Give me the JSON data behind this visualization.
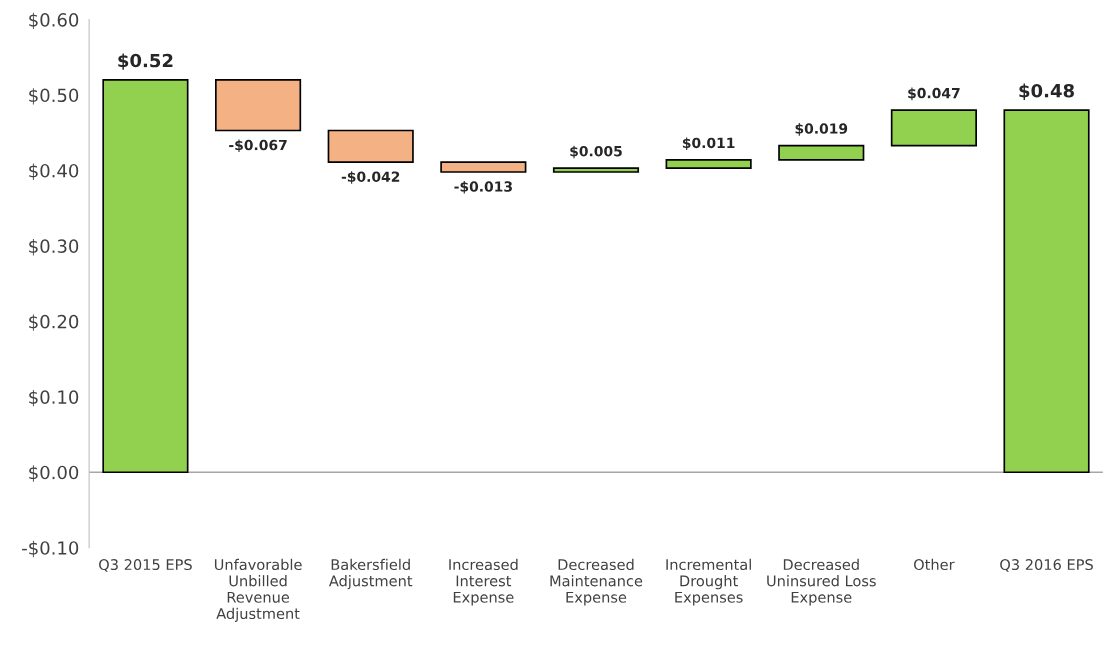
{
  "chart_data": {
    "type": "bar",
    "categories": [
      "Q3 2015 EPS",
      "Unfavorable\nUnbilled\nRevenue\nAdjustment",
      "Bakersfield\nAdjustment",
      "Increased\nInterest\nExpense",
      "Decreased\nMaintenance\nExpense",
      "Incremental\nDrought\nExpenses",
      "Decreased\nUninsured Loss\nExpense",
      "Other",
      "Q3 2016 EPS"
    ],
    "values": [
      0.52,
      -0.067,
      -0.042,
      -0.013,
      0.005,
      0.011,
      0.019,
      0.047,
      0.48
    ],
    "base": [
      0,
      0.52,
      0.453,
      0.411,
      0.398,
      0.403,
      0.414,
      0.433,
      0
    ],
    "colors": [
      "#92d050",
      "#f4b183",
      "#f4b183",
      "#f4b183",
      "#92d050",
      "#92d050",
      "#92d050",
      "#92d050",
      "#92d050"
    ],
    "value_labels": [
      "$0.52",
      "-$0.067",
      "-$0.042",
      "-$0.013",
      "$0.005",
      "$0.011",
      "$0.019",
      "$0.047",
      "$0.48"
    ],
    "ylim": [
      -0.1,
      0.6
    ],
    "yticks": [
      {
        "value": -0.1,
        "label": "-$0.10"
      },
      {
        "value": 0,
        "label": "$0.00"
      },
      {
        "value": 0.1,
        "label": "$0.10"
      },
      {
        "value": 0.2,
        "label": "$0.20"
      },
      {
        "value": 0.3,
        "label": "$0.30"
      },
      {
        "value": 0.4,
        "label": "$0.40"
      },
      {
        "value": 0.5,
        "label": "$0.50"
      },
      {
        "value": 0.6,
        "label": "$0.60"
      }
    ],
    "ref_lines": [
      {
        "axis": "y",
        "value": 0,
        "color": "#a6a6a6"
      }
    ],
    "grid": false,
    "legend": false
  }
}
